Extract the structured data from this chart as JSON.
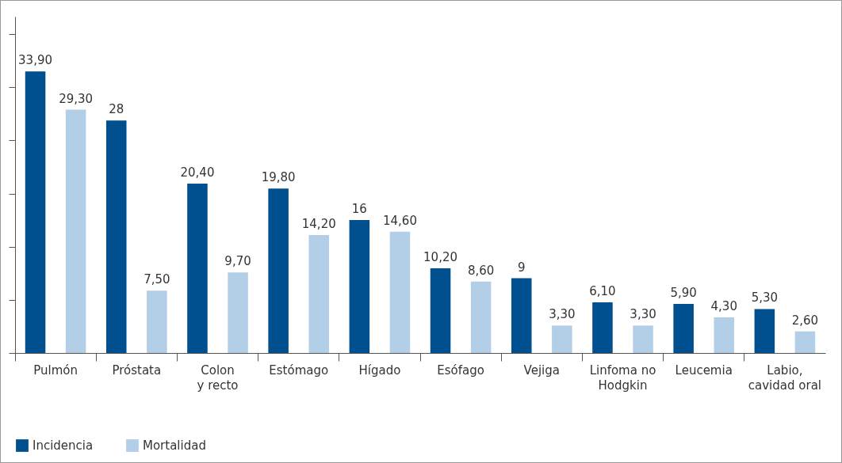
{
  "chart_data": {
    "type": "bar",
    "categories": [
      "Pulmón",
      "Próstata",
      "Colon\ny recto",
      "Estómago",
      "Hígado",
      "Esófago",
      "Vejiga",
      "Linfoma no\nHodgkin",
      "Leucemia",
      "Labio,\ncavidad oral"
    ],
    "series": [
      {
        "name": "Incidencia",
        "color": "#00508f",
        "values": [
          33.9,
          28,
          20.4,
          19.8,
          16,
          10.2,
          9,
          6.1,
          5.9,
          5.3
        ],
        "value_labels": [
          "33,90",
          "28",
          "20,40",
          "19,80",
          "16",
          "10,20",
          "9",
          "6,10",
          "5,90",
          "5,30"
        ]
      },
      {
        "name": "Mortalidad",
        "color": "#b3cfe8",
        "values": [
          29.3,
          7.5,
          9.7,
          14.2,
          14.6,
          8.6,
          3.3,
          3.3,
          4.3,
          2.6
        ],
        "value_labels": [
          "29,30",
          "7,50",
          "9,70",
          "14,20",
          "14,60",
          "8,60",
          "3,30",
          "3,30",
          "4,30",
          "2,60"
        ]
      }
    ],
    "ylim": [
      0,
      40.5
    ],
    "yticks": [
      {
        "value": 0,
        "label": null
      },
      {
        "value": 6.4,
        "label": null
      },
      {
        "value": 12.8,
        "label": null
      },
      {
        "value": 19.2,
        "label": null
      },
      {
        "value": 25.6,
        "label": null
      },
      {
        "value": 32,
        "label": null
      },
      {
        "value": 38.4,
        "label": null
      }
    ],
    "grid": false,
    "legend": "bottom"
  }
}
